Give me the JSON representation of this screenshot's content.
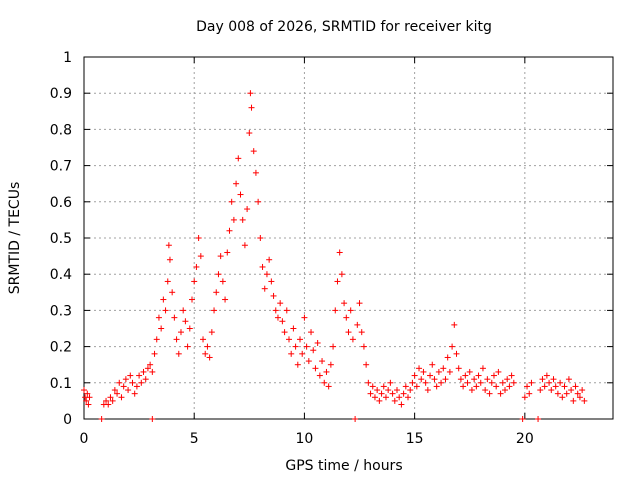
{
  "chart_data": {
    "type": "scatter",
    "title": "Day 008 of 2026, SRMTID for receiver kitg",
    "xlabel": "GPS time / hours",
    "ylabel": "SRMTID / TECUs",
    "xlim": [
      0,
      24
    ],
    "ylim": [
      0,
      1
    ],
    "xticks": [
      0,
      5,
      10,
      15,
      20
    ],
    "yticks": [
      0,
      0.1,
      0.2,
      0.3,
      0.4,
      0.5,
      0.6,
      0.7,
      0.8,
      0.9,
      1
    ],
    "grid": true,
    "marker": "+",
    "color": "#ff0000",
    "series": [
      {
        "name": "SRMTID",
        "points": [
          [
            0.0,
            0.08
          ],
          [
            0.05,
            0.06
          ],
          [
            0.1,
            0.05
          ],
          [
            0.15,
            0.07
          ],
          [
            0.2,
            0.04
          ],
          [
            0.25,
            0.06
          ],
          [
            0.8,
            0.0
          ],
          [
            0.9,
            0.04
          ],
          [
            1.0,
            0.05
          ],
          [
            1.1,
            0.04
          ],
          [
            1.2,
            0.06
          ],
          [
            1.3,
            0.05
          ],
          [
            1.4,
            0.08
          ],
          [
            1.5,
            0.07
          ],
          [
            1.6,
            0.1
          ],
          [
            1.7,
            0.06
          ],
          [
            1.8,
            0.09
          ],
          [
            1.9,
            0.11
          ],
          [
            2.0,
            0.08
          ],
          [
            2.1,
            0.12
          ],
          [
            2.2,
            0.1
          ],
          [
            2.3,
            0.07
          ],
          [
            2.4,
            0.09
          ],
          [
            2.5,
            0.12
          ],
          [
            2.6,
            0.1
          ],
          [
            2.7,
            0.13
          ],
          [
            2.8,
            0.11
          ],
          [
            2.9,
            0.14
          ],
          [
            3.0,
            0.15
          ],
          [
            3.1,
            0.13
          ],
          [
            3.1,
            0.0
          ],
          [
            3.2,
            0.18
          ],
          [
            3.3,
            0.22
          ],
          [
            3.4,
            0.28
          ],
          [
            3.5,
            0.25
          ],
          [
            3.6,
            0.33
          ],
          [
            3.7,
            0.3
          ],
          [
            3.8,
            0.38
          ],
          [
            3.85,
            0.48
          ],
          [
            3.9,
            0.44
          ],
          [
            4.0,
            0.35
          ],
          [
            4.1,
            0.28
          ],
          [
            4.2,
            0.22
          ],
          [
            4.3,
            0.18
          ],
          [
            4.4,
            0.24
          ],
          [
            4.5,
            0.3
          ],
          [
            4.6,
            0.27
          ],
          [
            4.7,
            0.2
          ],
          [
            4.8,
            0.25
          ],
          [
            4.9,
            0.33
          ],
          [
            5.0,
            0.38
          ],
          [
            5.1,
            0.42
          ],
          [
            5.2,
            0.5
          ],
          [
            5.3,
            0.45
          ],
          [
            5.4,
            0.22
          ],
          [
            5.5,
            0.18
          ],
          [
            5.6,
            0.2
          ],
          [
            5.7,
            0.17
          ],
          [
            5.8,
            0.24
          ],
          [
            5.9,
            0.3
          ],
          [
            6.0,
            0.35
          ],
          [
            6.1,
            0.4
          ],
          [
            6.2,
            0.45
          ],
          [
            6.3,
            0.38
          ],
          [
            6.4,
            0.33
          ],
          [
            6.5,
            0.46
          ],
          [
            6.6,
            0.52
          ],
          [
            6.7,
            0.6
          ],
          [
            6.8,
            0.55
          ],
          [
            6.9,
            0.65
          ],
          [
            7.0,
            0.72
          ],
          [
            7.1,
            0.62
          ],
          [
            7.2,
            0.55
          ],
          [
            7.3,
            0.48
          ],
          [
            7.4,
            0.58
          ],
          [
            7.5,
            0.79
          ],
          [
            7.55,
            0.9
          ],
          [
            7.6,
            0.86
          ],
          [
            7.7,
            0.74
          ],
          [
            7.8,
            0.68
          ],
          [
            7.9,
            0.6
          ],
          [
            8.0,
            0.5
          ],
          [
            8.1,
            0.42
          ],
          [
            8.2,
            0.36
          ],
          [
            8.3,
            0.4
          ],
          [
            8.4,
            0.44
          ],
          [
            8.5,
            0.38
          ],
          [
            8.6,
            0.34
          ],
          [
            8.7,
            0.3
          ],
          [
            8.8,
            0.28
          ],
          [
            8.9,
            0.32
          ],
          [
            9.0,
            0.27
          ],
          [
            9.1,
            0.24
          ],
          [
            9.2,
            0.3
          ],
          [
            9.3,
            0.22
          ],
          [
            9.4,
            0.18
          ],
          [
            9.5,
            0.25
          ],
          [
            9.6,
            0.2
          ],
          [
            9.7,
            0.15
          ],
          [
            9.8,
            0.22
          ],
          [
            9.9,
            0.18
          ],
          [
            10.0,
            0.28
          ],
          [
            10.1,
            0.2
          ],
          [
            10.2,
            0.16
          ],
          [
            10.3,
            0.24
          ],
          [
            10.4,
            0.19
          ],
          [
            10.5,
            0.14
          ],
          [
            10.6,
            0.21
          ],
          [
            10.7,
            0.12
          ],
          [
            10.8,
            0.16
          ],
          [
            10.9,
            0.1
          ],
          [
            11.0,
            0.13
          ],
          [
            11.1,
            0.09
          ],
          [
            11.2,
            0.15
          ],
          [
            11.3,
            0.2
          ],
          [
            11.4,
            0.3
          ],
          [
            11.5,
            0.38
          ],
          [
            11.6,
            0.46
          ],
          [
            11.7,
            0.4
          ],
          [
            11.8,
            0.32
          ],
          [
            11.9,
            0.28
          ],
          [
            12.0,
            0.24
          ],
          [
            12.1,
            0.3
          ],
          [
            12.2,
            0.22
          ],
          [
            12.3,
            0.0
          ],
          [
            12.4,
            0.26
          ],
          [
            12.5,
            0.32
          ],
          [
            12.6,
            0.24
          ],
          [
            12.7,
            0.2
          ],
          [
            12.8,
            0.15
          ],
          [
            12.9,
            0.1
          ],
          [
            13.0,
            0.07
          ],
          [
            13.1,
            0.09
          ],
          [
            13.2,
            0.06
          ],
          [
            13.3,
            0.08
          ],
          [
            13.4,
            0.05
          ],
          [
            13.5,
            0.07
          ],
          [
            13.6,
            0.09
          ],
          [
            13.7,
            0.06
          ],
          [
            13.8,
            0.08
          ],
          [
            13.9,
            0.1
          ],
          [
            14.0,
            0.07
          ],
          [
            14.1,
            0.05
          ],
          [
            14.2,
            0.08
          ],
          [
            14.3,
            0.06
          ],
          [
            14.4,
            0.04
          ],
          [
            14.5,
            0.07
          ],
          [
            14.6,
            0.09
          ],
          [
            14.7,
            0.06
          ],
          [
            14.8,
            0.08
          ],
          [
            14.9,
            0.1
          ],
          [
            15.0,
            0.12
          ],
          [
            15.1,
            0.09
          ],
          [
            15.2,
            0.14
          ],
          [
            15.3,
            0.11
          ],
          [
            15.4,
            0.13
          ],
          [
            15.5,
            0.1
          ],
          [
            15.6,
            0.08
          ],
          [
            15.7,
            0.12
          ],
          [
            15.8,
            0.15
          ],
          [
            15.9,
            0.11
          ],
          [
            16.0,
            0.09
          ],
          [
            16.1,
            0.13
          ],
          [
            16.2,
            0.1
          ],
          [
            16.3,
            0.14
          ],
          [
            16.4,
            0.11
          ],
          [
            16.5,
            0.17
          ],
          [
            16.6,
            0.13
          ],
          [
            16.7,
            0.2
          ],
          [
            16.8,
            0.26
          ],
          [
            16.9,
            0.18
          ],
          [
            17.0,
            0.14
          ],
          [
            17.1,
            0.11
          ],
          [
            17.2,
            0.09
          ],
          [
            17.3,
            0.12
          ],
          [
            17.4,
            0.1
          ],
          [
            17.5,
            0.13
          ],
          [
            17.6,
            0.08
          ],
          [
            17.7,
            0.11
          ],
          [
            17.8,
            0.09
          ],
          [
            17.9,
            0.12
          ],
          [
            18.0,
            0.1
          ],
          [
            18.1,
            0.14
          ],
          [
            18.2,
            0.08
          ],
          [
            18.3,
            0.11
          ],
          [
            18.4,
            0.07
          ],
          [
            18.5,
            0.1
          ],
          [
            18.6,
            0.12
          ],
          [
            18.7,
            0.09
          ],
          [
            18.8,
            0.13
          ],
          [
            18.9,
            0.07
          ],
          [
            19.0,
            0.1
          ],
          [
            19.1,
            0.08
          ],
          [
            19.2,
            0.11
          ],
          [
            19.3,
            0.09
          ],
          [
            19.4,
            0.12
          ],
          [
            19.5,
            0.1
          ],
          [
            19.9,
            0.0
          ],
          [
            20.0,
            0.06
          ],
          [
            20.1,
            0.09
          ],
          [
            20.2,
            0.07
          ],
          [
            20.3,
            0.1
          ],
          [
            20.6,
            0.0
          ],
          [
            20.7,
            0.08
          ],
          [
            20.8,
            0.11
          ],
          [
            20.9,
            0.09
          ],
          [
            21.0,
            0.12
          ],
          [
            21.1,
            0.1
          ],
          [
            21.2,
            0.08
          ],
          [
            21.3,
            0.11
          ],
          [
            21.4,
            0.09
          ],
          [
            21.5,
            0.07
          ],
          [
            21.6,
            0.1
          ],
          [
            21.7,
            0.06
          ],
          [
            21.8,
            0.09
          ],
          [
            21.9,
            0.07
          ],
          [
            22.0,
            0.11
          ],
          [
            22.1,
            0.08
          ],
          [
            22.2,
            0.05
          ],
          [
            22.3,
            0.09
          ],
          [
            22.4,
            0.07
          ],
          [
            22.5,
            0.06
          ],
          [
            22.6,
            0.08
          ],
          [
            22.7,
            0.05
          ]
        ]
      }
    ]
  }
}
